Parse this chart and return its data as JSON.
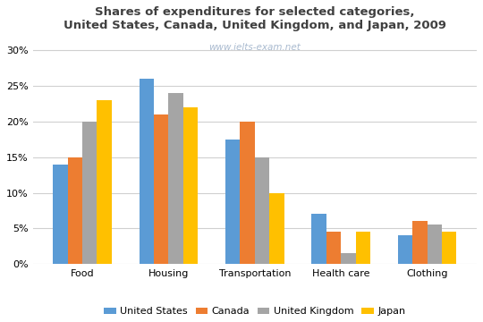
{
  "title": "Shares of expenditures for selected categories,\nUnited States, Canada, United Kingdom, and Japan, 2009",
  "watermark": "www.ielts-exam.net",
  "categories": [
    "Food",
    "Housing",
    "Transportation",
    "Health care",
    "Clothing"
  ],
  "countries": [
    "United States",
    "Canada",
    "United Kingdom",
    "Japan"
  ],
  "values": {
    "United States": [
      14,
      26,
      17.5,
      7,
      4
    ],
    "Canada": [
      15,
      21,
      20,
      4.5,
      6
    ],
    "United Kingdom": [
      20,
      24,
      15,
      1.5,
      5.5
    ],
    "Japan": [
      23,
      22,
      10,
      4.5,
      4.5
    ]
  },
  "colors": {
    "United States": "#5B9BD5",
    "Canada": "#ED7D31",
    "United Kingdom": "#A5A5A5",
    "Japan": "#FFC000"
  },
  "ylim": [
    0,
    32
  ],
  "yticks": [
    0,
    5,
    10,
    15,
    20,
    25,
    30
  ],
  "background_color": "#FFFFFF",
  "grid_color": "#D0D0D0",
  "title_fontsize": 9.5,
  "title_color": "#404040",
  "watermark_color": "#AABBD0",
  "watermark_fontsize": 7.5,
  "tick_fontsize": 8,
  "legend_fontsize": 8
}
